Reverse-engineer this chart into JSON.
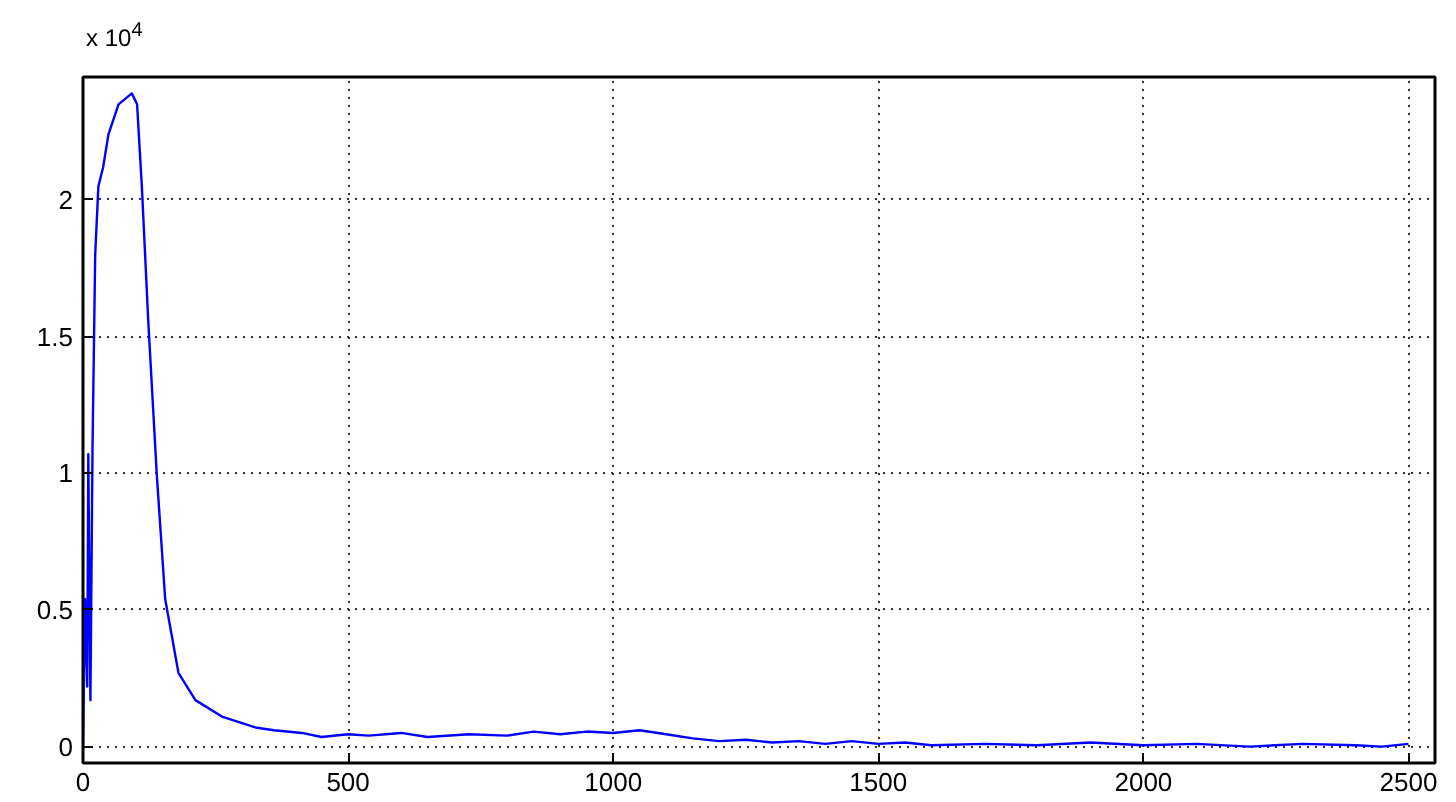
{
  "chart_data": {
    "type": "line",
    "annotations": [
      "x 10$^{4}$"
    ],
    "x": [
      0,
      4,
      8,
      10,
      14,
      18,
      23,
      29,
      38,
      48,
      67,
      92,
      102,
      111,
      123,
      139,
      155,
      180,
      212,
      262,
      325,
      360,
      413,
      450,
      500,
      539,
      600,
      650,
      728,
      800,
      850,
      900,
      950,
      1000,
      1050,
      1100,
      1150,
      1200,
      1250,
      1300,
      1350,
      1400,
      1450,
      1500,
      1550,
      1600,
      1700,
      1800,
      1900,
      2000,
      2100,
      2200,
      2300,
      2400,
      2450,
      2500
    ],
    "series": [
      {
        "color": "#0000ff",
        "values": [
          0,
          0.54,
          0.22,
          1.07,
          0.17,
          1.1,
          1.8,
          2.05,
          2.12,
          2.24,
          2.35,
          2.39,
          2.35,
          2.05,
          1.56,
          1.0,
          0.54,
          0.27,
          0.17,
          0.11,
          0.07,
          0.06,
          0.05,
          0.035,
          0.045,
          0.04,
          0.05,
          0.035,
          0.045,
          0.04,
          0.055,
          0.045,
          0.055,
          0.05,
          0.06,
          0.045,
          0.03,
          0.02,
          0.025,
          0.015,
          0.02,
          0.01,
          0.02,
          0.01,
          0.015,
          0.005,
          0.01,
          0.005,
          0.015,
          0.005,
          0.01,
          0,
          0.01,
          0.005,
          0,
          0.01
        ]
      }
    ],
    "xlim": [
      0,
      2550
    ],
    "ylim": [
      -0.06,
      2.45
    ],
    "xticks": [
      0,
      500,
      1000,
      1500,
      2000,
      2500
    ],
    "yticks": [
      0,
      0.5,
      1,
      1.5,
      2
    ],
    "grid": true
  }
}
